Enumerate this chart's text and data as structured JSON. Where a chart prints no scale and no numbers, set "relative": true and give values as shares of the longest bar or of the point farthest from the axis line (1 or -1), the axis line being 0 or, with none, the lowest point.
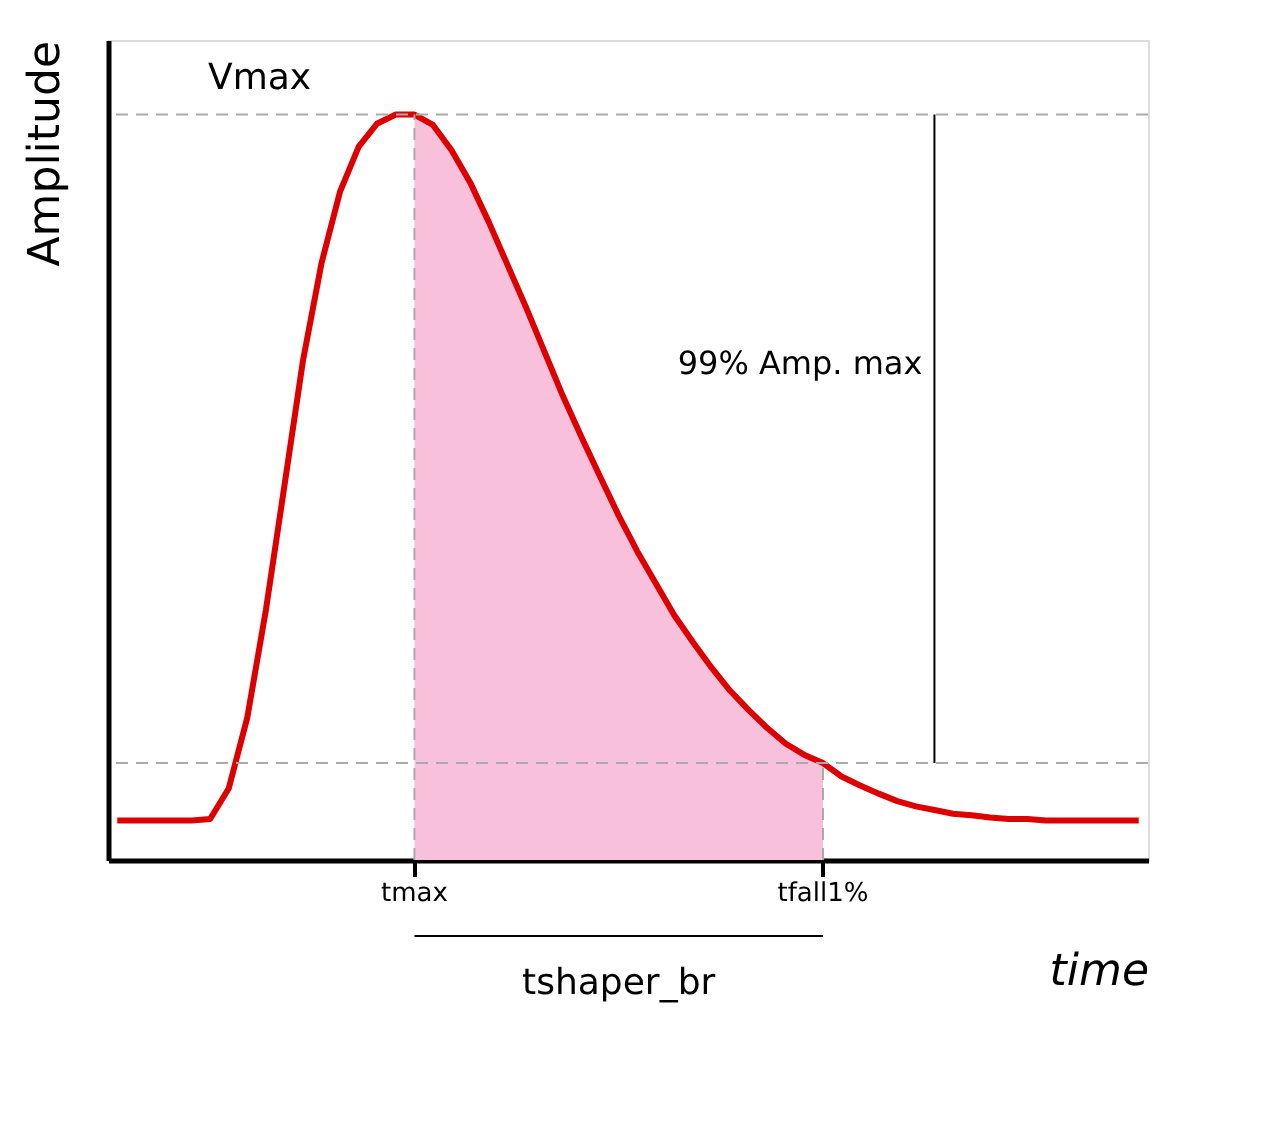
{
  "chart_data": {
    "type": "line",
    "relative": true,
    "xlabel": "time",
    "ylabel": "Amplitude",
    "categories": [
      null,
      null,
      null,
      null,
      null,
      null,
      null,
      null,
      null,
      null,
      null,
      null,
      null,
      null,
      null,
      null,
      "tmax",
      null,
      null,
      null,
      null,
      null,
      null,
      null,
      null,
      null,
      null,
      null,
      null,
      null,
      null,
      null,
      null,
      null,
      null,
      null,
      null,
      null,
      "tfall1%",
      null,
      null,
      null,
      null,
      null,
      null,
      null,
      null,
      null,
      null,
      null,
      null,
      null,
      null,
      null,
      null,
      null
    ],
    "series": [
      {
        "type": "area",
        "color": "#f9c0dc",
        "values": [
          null,
          null,
          null,
          null,
          null,
          null,
          null,
          null,
          null,
          null,
          null,
          null,
          null,
          null,
          null,
          null,
          1.0,
          0.986,
          0.952,
          0.909,
          0.856,
          0.799,
          0.742,
          0.682,
          0.622,
          0.567,
          0.514,
          0.462,
          0.414,
          0.371,
          0.328,
          0.292,
          0.258,
          0.227,
          0.201,
          0.177,
          0.156,
          0.141,
          0.13,
          null,
          null,
          null,
          null,
          null,
          null,
          null,
          null,
          null,
          null,
          null,
          null,
          null,
          null,
          null,
          null,
          null
        ]
      },
      {
        "type": "line",
        "color": "#dd0000",
        "values": [
          0.053,
          0.053,
          0.053,
          0.053,
          0.053,
          0.055,
          0.096,
          0.191,
          0.335,
          0.502,
          0.67,
          0.801,
          0.897,
          0.957,
          0.988,
          1.0,
          1.0,
          0.986,
          0.952,
          0.909,
          0.856,
          0.799,
          0.742,
          0.682,
          0.622,
          0.567,
          0.514,
          0.462,
          0.414,
          0.371,
          0.328,
          0.292,
          0.258,
          0.227,
          0.201,
          0.177,
          0.156,
          0.141,
          0.13,
          0.112,
          0.1,
          0.089,
          0.079,
          0.072,
          0.067,
          0.062,
          0.06,
          0.057,
          0.055,
          0.055,
          0.053,
          0.053,
          0.053,
          0.053,
          0.053,
          0.053
        ]
      }
    ],
    "ref_lines": [
      {
        "axis": "y",
        "value": 1.0,
        "label": "Vmax",
        "color": "#aaaaaa",
        "line_style": "dashed"
      },
      {
        "axis": "y",
        "value": 0.13,
        "color": "#aaaaaa",
        "line_style": "dashed"
      },
      {
        "axis": "x",
        "value": "tmax",
        "color": "#aaaaaa",
        "line_style": "dashed"
      },
      {
        "axis": "x",
        "value": "tfall1%",
        "color": "#aaaaaa",
        "line_style": "dashed"
      }
    ],
    "annotations": [
      "99% Amp. max",
      "tshaper_br"
    ],
    "tick_labels": "x",
    "marker": "none",
    "line_style": "solid"
  }
}
